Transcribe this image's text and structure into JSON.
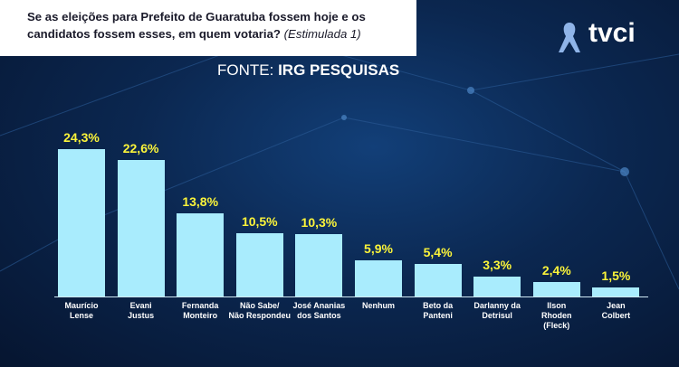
{
  "chart_data": {
    "type": "bar",
    "title": "Se as eleições para Prefeito de Guaratuba fossem hoje e os candidatos fossem esses, em quem votaria?",
    "subtitle": "(Estimulada 1)",
    "source_label": "FONTE:",
    "source": "IRG PESQUISAS",
    "logo": "tvci",
    "categories": [
      "Maurício\nLense",
      "Evani\nJustus",
      "Fernanda\nMonteiro",
      "Não Sabe/\nNão Respondeu",
      "José Ananias\ndos Santos",
      "Nenhum",
      "Beto da\nPanteni",
      "Darlanny da\nDetrisul",
      "Ilson\nRhoden\n(Fleck)",
      "Jean\nColbert"
    ],
    "values": [
      24.3,
      22.6,
      13.8,
      10.5,
      10.3,
      5.9,
      5.4,
      3.3,
      2.4,
      1.5
    ],
    "value_labels": [
      "24,3%",
      "22,6%",
      "13,8%",
      "10,5%",
      "10,3%",
      "5,9%",
      "5,4%",
      "3,3%",
      "2,4%",
      "1,5%"
    ],
    "color": "#a9ecfd",
    "label_color": "#fbf43a"
  }
}
